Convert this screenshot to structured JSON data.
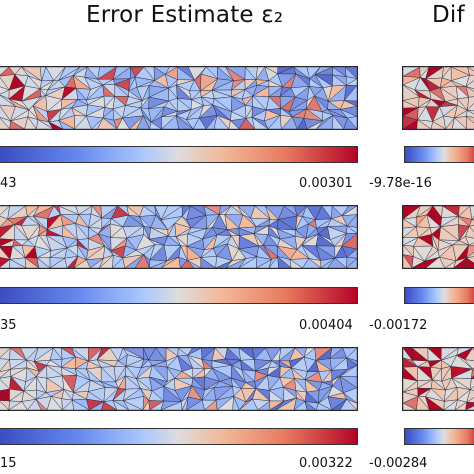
{
  "titles": {
    "left": "Error Estimate ε₂",
    "right": "Dif"
  },
  "rows": [
    {
      "left_min": "43",
      "left_max": "0.00301",
      "right_min": "-9.78e-16"
    },
    {
      "left_min": "35",
      "left_max": "0.00404",
      "right_min": "-0.00172"
    },
    {
      "left_min": "15",
      "left_max": "0.00322",
      "right_min": "-0.00284"
    }
  ],
  "colormap": [
    "#3b4cc0",
    "#aac7fd",
    "#dddddd",
    "#f4b99b",
    "#b40426"
  ]
}
